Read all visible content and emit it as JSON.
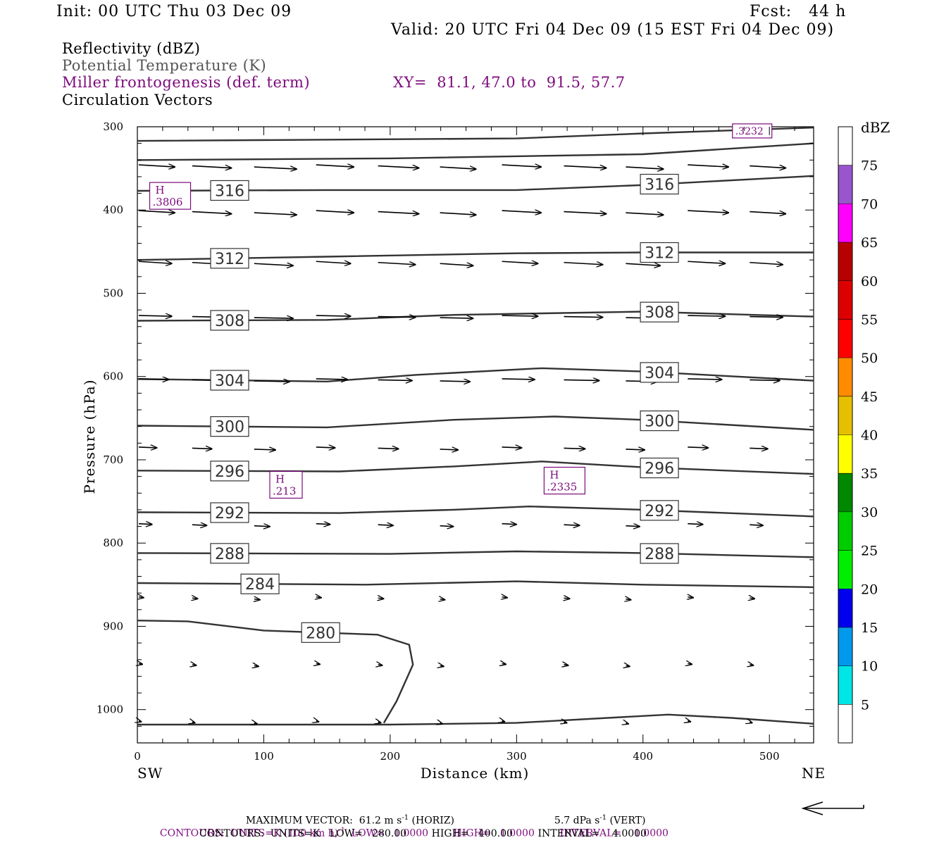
{
  "header": {
    "init": "Init: 00 UTC Thu 03 Dec 09",
    "fcst": "Fcst:   44 h",
    "valid": "Valid: 20 UTC Fri 04 Dec 09 (15 EST Fri 04 Dec 09)",
    "title1": "Reflectivity (dBZ)",
    "title2": "Potential Temperature (K)",
    "title3": "Miller frontogenesis (def. term)",
    "title4": "Circulation Vectors",
    "xy": "XY=  81.1, 47.0 to  91.5, 57.7"
  },
  "colors": {
    "text": "#000000",
    "contour_line": "#333333",
    "frontogenesis": "#7d0a7d",
    "theta_title": "#555555"
  },
  "chart_data": {
    "type": "line",
    "xlabel": "Distance (km)",
    "ylabel": "Pressure (hPa)",
    "x_left_label": "SW",
    "x_right_label": "NE",
    "xlim": [
      0,
      535
    ],
    "ylim": [
      1040,
      300
    ],
    "x_ticks": [
      0,
      100,
      200,
      300,
      400,
      500
    ],
    "y_ticks": [
      300,
      400,
      500,
      600,
      700,
      800,
      900,
      1000
    ],
    "theta_contours": [
      {
        "value": "",
        "points": [
          [
            0,
            317
          ],
          [
            300,
            314
          ],
          [
            400,
            308
          ],
          [
            535,
            301
          ]
        ]
      },
      {
        "value": "",
        "points": [
          [
            0,
            340
          ],
          [
            200,
            338
          ],
          [
            400,
            333
          ],
          [
            535,
            320
          ]
        ]
      },
      {
        "value": "316",
        "points": [
          [
            0,
            377
          ],
          [
            150,
            376
          ],
          [
            300,
            376
          ],
          [
            400,
            370
          ],
          [
            535,
            359
          ]
        ]
      },
      {
        "value": "312",
        "points": [
          [
            0,
            460
          ],
          [
            150,
            456
          ],
          [
            300,
            452
          ],
          [
            400,
            451
          ],
          [
            535,
            451
          ]
        ]
      },
      {
        "value": "308",
        "points": [
          [
            0,
            533
          ],
          [
            150,
            532
          ],
          [
            250,
            526
          ],
          [
            400,
            522
          ],
          [
            535,
            528
          ]
        ]
      },
      {
        "value": "304",
        "points": [
          [
            0,
            603
          ],
          [
            150,
            606
          ],
          [
            220,
            598
          ],
          [
            320,
            590
          ],
          [
            400,
            594
          ],
          [
            535,
            605
          ]
        ]
      },
      {
        "value": "300",
        "points": [
          [
            0,
            659
          ],
          [
            150,
            661
          ],
          [
            250,
            652
          ],
          [
            330,
            648
          ],
          [
            400,
            652
          ],
          [
            535,
            664
          ]
        ]
      },
      {
        "value": "296",
        "points": [
          [
            0,
            713
          ],
          [
            160,
            714
          ],
          [
            250,
            708
          ],
          [
            320,
            702
          ],
          [
            400,
            709
          ],
          [
            535,
            717
          ]
        ]
      },
      {
        "value": "292",
        "points": [
          [
            0,
            763
          ],
          [
            160,
            764
          ],
          [
            250,
            760
          ],
          [
            310,
            756
          ],
          [
            400,
            760
          ],
          [
            535,
            768
          ]
        ]
      },
      {
        "value": "288",
        "points": [
          [
            0,
            812
          ],
          [
            200,
            813
          ],
          [
            300,
            810
          ],
          [
            400,
            812
          ],
          [
            535,
            817
          ]
        ]
      },
      {
        "value": "284",
        "points": [
          [
            0,
            848
          ],
          [
            180,
            850
          ],
          [
            300,
            846
          ],
          [
            400,
            850
          ],
          [
            535,
            853
          ]
        ]
      },
      {
        "value": "280",
        "points": [
          [
            0,
            893
          ],
          [
            40,
            894
          ],
          [
            100,
            905
          ],
          [
            190,
            910
          ],
          [
            215,
            922
          ],
          [
            218,
            946
          ],
          [
            205,
            990
          ],
          [
            195,
            1016
          ]
        ]
      },
      {
        "value": "",
        "points": [
          [
            0,
            1018
          ],
          [
            200,
            1018
          ],
          [
            300,
            1016
          ],
          [
            420,
            1006
          ],
          [
            470,
            1010
          ],
          [
            535,
            1017
          ]
        ]
      }
    ],
    "frontogenesis_highs": [
      {
        "label": "H",
        "value": ".3806"
      },
      {
        "label": "H",
        "value": ".213"
      },
      {
        "label": "H",
        "value": ".2335"
      },
      {
        "label": "",
        "value": ".3232"
      }
    ],
    "colorbar": {
      "unit": "dBZ",
      "levels": [
        "5",
        "10",
        "15",
        "20",
        "25",
        "30",
        "35",
        "40",
        "45",
        "50",
        "55",
        "60",
        "65",
        "70",
        "75"
      ],
      "colors": [
        "#ffffff",
        "#00e5e5",
        "#0099ee",
        "#0000ee",
        "#00ee00",
        "#00cc00",
        "#008800",
        "#ffff00",
        "#e6c000",
        "#ff8c00",
        "#ff0000",
        "#dd0000",
        "#b80000",
        "#ff00ff",
        "#9955cc",
        "#ffffff"
      ]
    },
    "vector_rows": [
      {
        "p": 347,
        "len": 60
      },
      {
        "p": 402,
        "len": 60
      },
      {
        "p": 463,
        "len": 55
      },
      {
        "p": 528,
        "len": 55
      },
      {
        "p": 604,
        "len": 50
      },
      {
        "p": 686,
        "len": 30
      },
      {
        "p": 778,
        "len": 22
      },
      {
        "p": 866,
        "len": 8
      },
      {
        "p": 946,
        "len": 6
      },
      {
        "p": 1015,
        "len": 4
      }
    ]
  },
  "footer": {
    "max_vector": "MAXIMUM VECTOR:  61.2 m s",
    "max_vector_sup": "-1",
    "horiz": " (HORIZ)",
    "vert": "5.7 dPa s",
    "vert_sup": "-1",
    "vert_tail": " (VERT)",
    "contours1_a": "CONTOURS:  UNITS=K (100 km h)",
    "contours1_sup": "-1",
    "contours1_b": "  LOW=   1.0000        HIGH=   1.0000        INTERVAL=    1.0000",
    "contours2": "CONTOURS:  UNITS=K   LOW=   280.00        HIGH=   400.00        INTERVAL=    4.0000"
  }
}
